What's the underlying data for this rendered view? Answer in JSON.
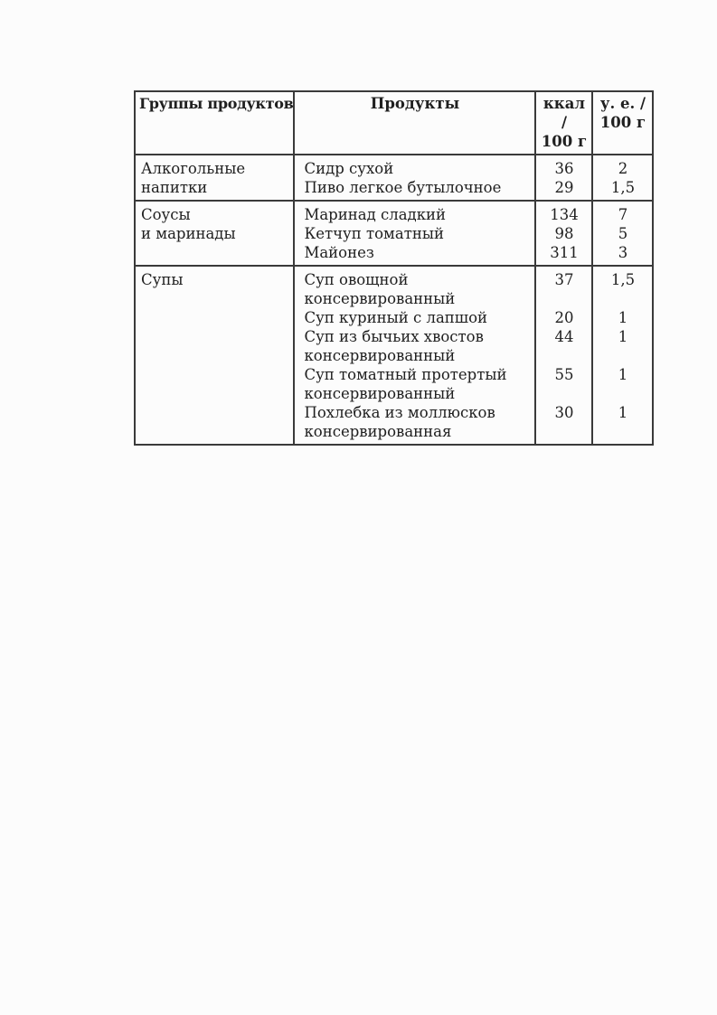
{
  "colors": {
    "page_background": "#fcfcfc",
    "border": "#3a3a3a",
    "text": "#202020"
  },
  "table": {
    "headers": {
      "groups": "Группы продуктов",
      "products": "Продукты",
      "kcal": "ккал /\n100 г",
      "ue": "у. е. /\n100 г"
    },
    "groups": [
      {
        "name": "Алкогольные\nнапитки",
        "products": [
          {
            "name": "Сидр сухой",
            "kcal": "36",
            "ue": "2"
          },
          {
            "name": "Пиво легкое бутылочное",
            "kcal": "29",
            "ue": "1,5"
          }
        ]
      },
      {
        "name": "Соусы\nи маринады",
        "products": [
          {
            "name": "Маринад сладкий",
            "kcal": "134",
            "ue": "7"
          },
          {
            "name": "Кетчуп томатный",
            "kcal": "98",
            "ue": "5"
          },
          {
            "name": "Майонез",
            "kcal": "311",
            "ue": "3"
          }
        ]
      },
      {
        "name": "Супы",
        "products": [
          {
            "name": "Суп овощной\nконсервированный",
            "kcal": "37",
            "ue": "1,5"
          },
          {
            "name": "Суп куриный с лапшой",
            "kcal": "20",
            "ue": "1"
          },
          {
            "name": "Суп из бычьих хвостов\nконсервированный",
            "kcal": "44",
            "ue": "1"
          },
          {
            "name": "Суп томатный протертый\nконсервированный",
            "kcal": "55",
            "ue": "1"
          },
          {
            "name": "Похлебка из моллюсков\nконсервированная",
            "kcal": "30",
            "ue": "1"
          }
        ]
      }
    ]
  }
}
